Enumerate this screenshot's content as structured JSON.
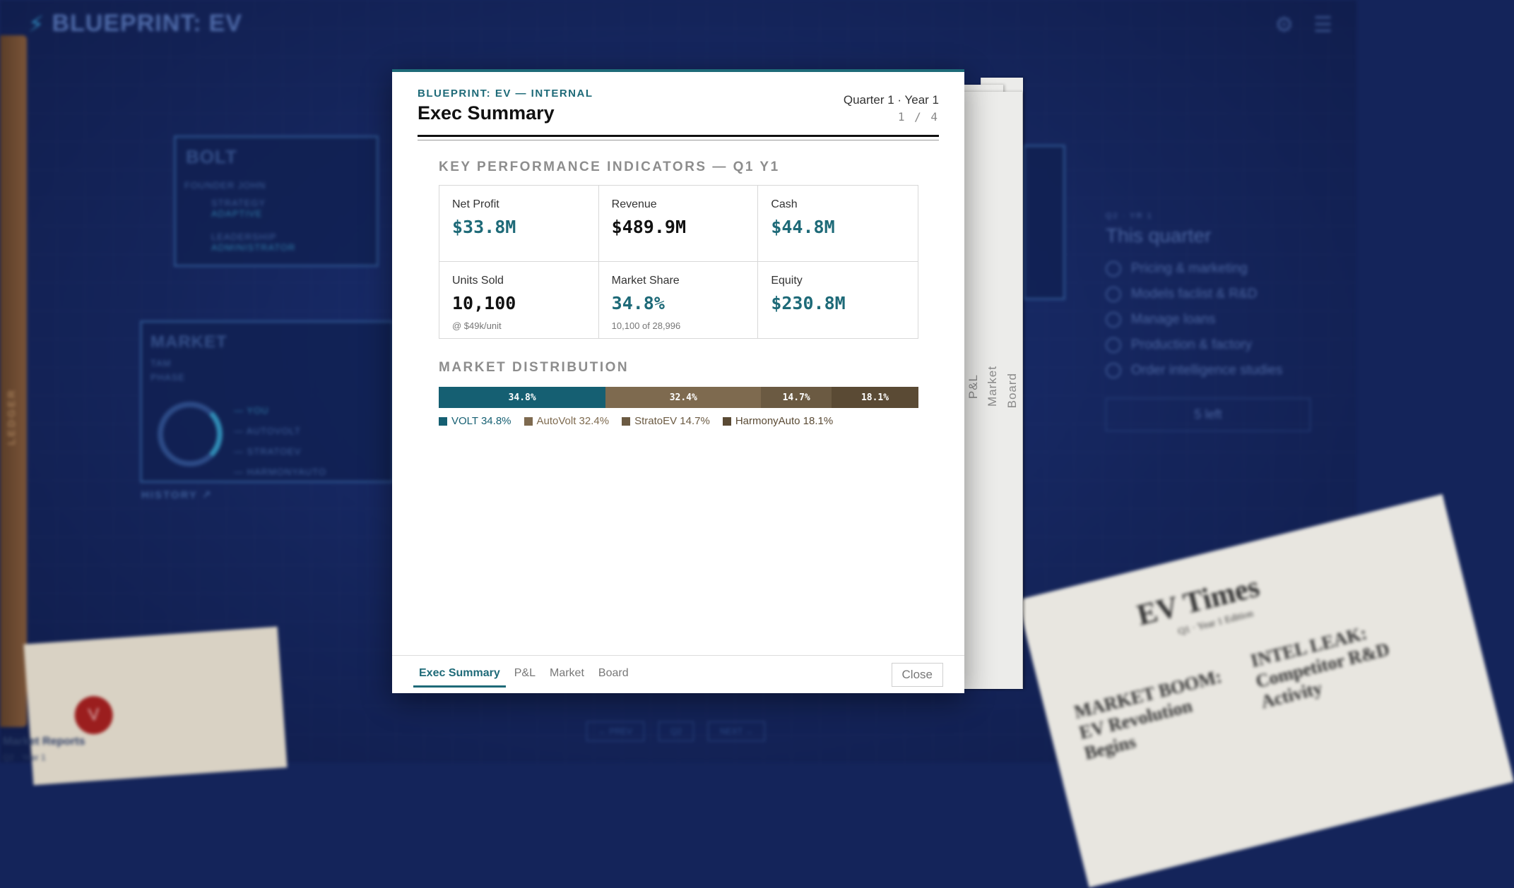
{
  "background": {
    "brand": {
      "prefix": "BLUEPRINT:",
      "suffix": "EV"
    },
    "ledger_label": "LEDGER",
    "company_card": {
      "title": "BOLT",
      "founder": "FOUNDER JOHN",
      "strategy_label": "STRATEGY",
      "strategy_value": "ADAPTIVE",
      "leadership_label": "LEADERSHIP",
      "leadership_value": "ADMINISTRATOR"
    },
    "market_card": {
      "title": "MARKET",
      "tam": "TAM",
      "phase": "PHASE",
      "rows": [
        "— YOU",
        "— AUTOVOLT",
        "— STRATOEV",
        "— HARMONYAUTO"
      ]
    },
    "history_label": "HISTORY ↗",
    "side_panel": {
      "caption": "Q2 · YR 1",
      "heading": "This quarter",
      "tasks": [
        "Pricing & marketing",
        "Models faclist & R&D",
        "Manage loans",
        "Production & factory",
        "Order intelligence studies"
      ],
      "remaining": "5 left"
    },
    "envelope": {
      "seal": "V",
      "label": "Market Reports",
      "sublabel": "Q2 · Year 1"
    },
    "newspaper": {
      "title": "EV Times",
      "subtitle": "Q1 · Year 1 Edition",
      "headline_1": "MARKET BOOM: EV Revolution Begins",
      "headline_2": "INTEL LEAK: Competitor R&D Activity"
    },
    "nav": {
      "prev": "← PREV",
      "quarter": "Q2",
      "next": "NEXT →"
    }
  },
  "sheets": {
    "tabs": [
      "P&L",
      "Market",
      "Board"
    ]
  },
  "modal": {
    "kicker": "BLUEPRINT: EV — INTERNAL",
    "title": "Exec Summary",
    "quarter": "Quarter 1 · Year 1",
    "page": "1 / 4",
    "kpi_section_title": "KEY PERFORMANCE INDICATORS — Q1 Y1",
    "kpis": [
      {
        "label": "Net Profit",
        "value": "$33.8M",
        "note": ""
      },
      {
        "label": "Revenue",
        "value": "$489.9M",
        "note": ""
      },
      {
        "label": "Cash",
        "value": "$44.8M",
        "note": ""
      },
      {
        "label": "Units Sold",
        "value": "10,100",
        "note": "@ $49k/unit"
      },
      {
        "label": "Market Share",
        "value": "34.8%",
        "note": "10,100 of 28,996"
      },
      {
        "label": "Equity",
        "value": "$230.8M",
        "note": ""
      }
    ],
    "distribution_title": "MARKET DISTRIBUTION",
    "distribution": [
      {
        "name": "VOLT",
        "share": 34.8,
        "label": "34.8%",
        "legend": "VOLT 34.8%",
        "color": "#155f72"
      },
      {
        "name": "AutoVolt",
        "share": 32.4,
        "label": "32.4%",
        "legend": "AutoVolt 32.4%",
        "color": "#7e6a4f"
      },
      {
        "name": "StratoEV",
        "share": 14.7,
        "label": "14.7%",
        "legend": "StratoEV 14.7%",
        "color": "#6b5a42"
      },
      {
        "name": "HarmonyAuto",
        "share": 18.1,
        "label": "18.1%",
        "legend": "HarmonyAuto 18.1%",
        "color": "#5a4a34"
      }
    ],
    "tabs": [
      "Exec Summary",
      "P&L",
      "Market",
      "Board"
    ],
    "close_label": "Close"
  }
}
